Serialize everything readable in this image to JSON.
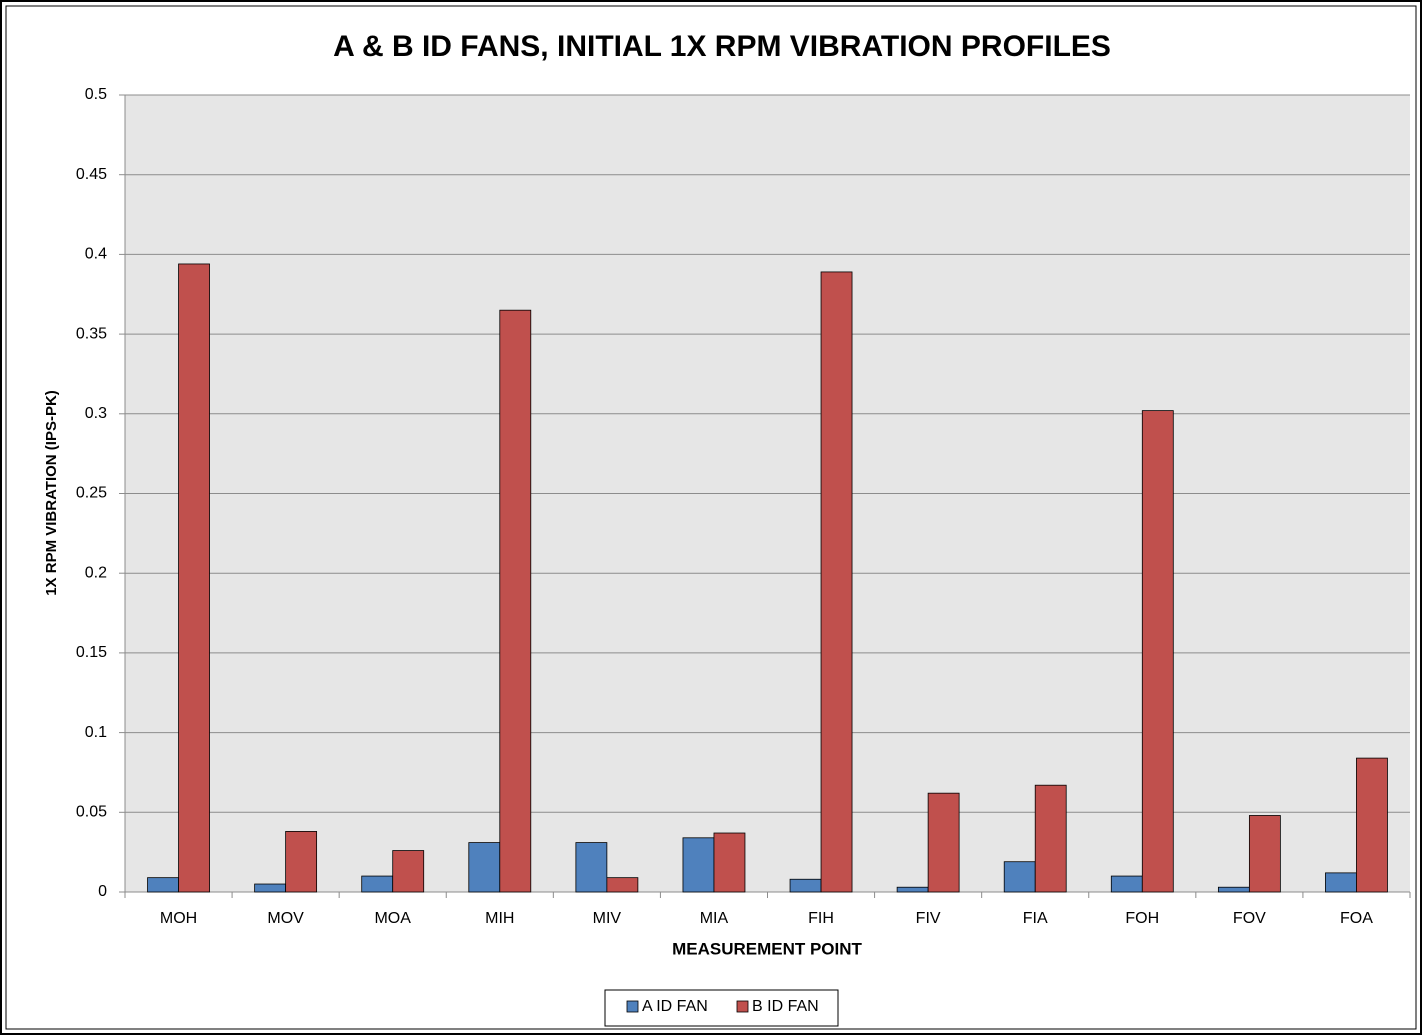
{
  "chart_data": {
    "type": "bar",
    "title": "A & B ID FANS, INITIAL 1X RPM VIBRATION PROFILES",
    "x_label": "MEASUREMENT POINT",
    "y_label": "1X RPM VIBRATION (IPS-PK)",
    "categories": [
      "MOH",
      "MOV",
      "MOA",
      "MIH",
      "MIV",
      "MIA",
      "FIH",
      "FIV",
      "FIA",
      "FOH",
      "FOV",
      "FOA"
    ],
    "series": [
      {
        "name": "A ID FAN",
        "color": "#4f81bd",
        "values": [
          0.009,
          0.005,
          0.01,
          0.031,
          0.031,
          0.034,
          0.008,
          0.003,
          0.019,
          0.01,
          0.003,
          0.012
        ]
      },
      {
        "name": "B ID FAN",
        "color": "#c0504d",
        "values": [
          0.394,
          0.038,
          0.026,
          0.365,
          0.009,
          0.037,
          0.389,
          0.062,
          0.067,
          0.302,
          0.048,
          0.084
        ]
      }
    ],
    "ylim": [
      0,
      0.5
    ],
    "yticks": [
      0,
      0.05,
      0.1,
      0.15,
      0.2,
      0.25,
      0.3,
      0.35,
      0.4,
      0.45,
      0.5
    ],
    "grid": true,
    "legend": "bottom"
  }
}
